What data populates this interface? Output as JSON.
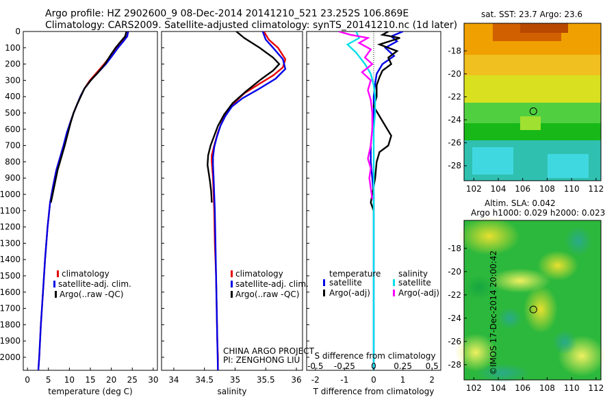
{
  "header": {
    "line1": "Argo profile: HZ 2902600_9 08-Dec-2014 20141210_521 23.252S 106.869E",
    "line2": "Climatology: CARS2009. Satellite-adjusted climatology: synTS_20141210.nc (1d later)"
  },
  "credit": "©IMOS 17-Dec-2014 20:00:42",
  "project": {
    "line1": "CHINA ARGO PROJECT",
    "line2": "PI: ZENGHONG LIU"
  },
  "colors": {
    "climatology": "#e60000",
    "satellite": "#0000e6",
    "argo": "#000000",
    "sat_sal": "#00e0e8",
    "argo_sal": "#ff00ff"
  },
  "chart_data": [
    {
      "type": "line",
      "xlabel": "temperature (deg C)",
      "ylabel": "",
      "xlim": [
        -1,
        31
      ],
      "ylim": [
        2080,
        0
      ],
      "xticks": [
        0,
        5,
        10,
        15,
        20,
        25,
        30
      ],
      "yticks": [
        0,
        100,
        200,
        300,
        400,
        500,
        600,
        700,
        800,
        900,
        1000,
        1100,
        1200,
        1300,
        1400,
        1500,
        1600,
        1700,
        1800,
        1900,
        2000
      ],
      "legend": [
        "climatology",
        "satellite-adj. clim.",
        "Argo(..raw -QC)"
      ],
      "legend_position": "bottom-right",
      "series": [
        {
          "name": "climatology",
          "color": "#e60000",
          "points": [
            [
              24.1,
              0
            ],
            [
              23.7,
              30
            ],
            [
              22.5,
              60
            ],
            [
              21.1,
              100
            ],
            [
              19.8,
              150
            ],
            [
              18.3,
              200
            ],
            [
              16.6,
              250
            ],
            [
              14.9,
              300
            ],
            [
              13.6,
              350
            ],
            [
              12.6,
              400
            ],
            [
              11.8,
              450
            ],
            [
              11.0,
              500
            ],
            [
              10.2,
              560
            ],
            [
              9.5,
              620
            ],
            [
              8.6,
              700
            ],
            [
              7.7,
              780
            ],
            [
              6.9,
              850
            ],
            [
              6.1,
              950
            ],
            [
              5.4,
              1050
            ],
            [
              4.8,
              1200
            ],
            [
              4.2,
              1400
            ],
            [
              3.7,
              1600
            ],
            [
              3.2,
              1800
            ],
            [
              2.8,
              2000
            ],
            [
              2.6,
              2080
            ]
          ]
        },
        {
          "name": "satellite-adj. clim.",
          "color": "#0000e6",
          "points": [
            [
              24.0,
              0
            ],
            [
              23.8,
              30
            ],
            [
              22.9,
              60
            ],
            [
              21.6,
              100
            ],
            [
              20.2,
              150
            ],
            [
              18.7,
              200
            ],
            [
              16.9,
              250
            ],
            [
              15.1,
              300
            ],
            [
              13.6,
              350
            ],
            [
              12.6,
              400
            ],
            [
              11.8,
              450
            ],
            [
              11.0,
              500
            ],
            [
              10.2,
              560
            ],
            [
              9.4,
              620
            ],
            [
              8.6,
              700
            ],
            [
              7.7,
              780
            ],
            [
              6.9,
              850
            ],
            [
              6.1,
              950
            ],
            [
              5.4,
              1050
            ],
            [
              4.8,
              1200
            ],
            [
              4.2,
              1400
            ],
            [
              3.7,
              1600
            ],
            [
              3.2,
              1800
            ],
            [
              2.8,
              2000
            ],
            [
              2.6,
              2080
            ]
          ]
        },
        {
          "name": "Argo(..raw -QC)",
          "color": "#000000",
          "points": [
            [
              23.6,
              0
            ],
            [
              23.3,
              30
            ],
            [
              22.3,
              60
            ],
            [
              21.0,
              100
            ],
            [
              19.7,
              150
            ],
            [
              18.5,
              200
            ],
            [
              16.9,
              250
            ],
            [
              15.1,
              300
            ],
            [
              13.6,
              350
            ],
            [
              12.7,
              400
            ],
            [
              11.8,
              450
            ],
            [
              11.0,
              500
            ],
            [
              10.3,
              560
            ],
            [
              9.7,
              620
            ],
            [
              8.9,
              700
            ],
            [
              8.0,
              780
            ],
            [
              7.2,
              850
            ],
            [
              6.4,
              950
            ],
            [
              5.6,
              1050
            ]
          ]
        }
      ]
    },
    {
      "type": "line",
      "xlabel": "salinity",
      "ylabel": "",
      "xlim": [
        33.8,
        36.1
      ],
      "ylim": [
        2080,
        0
      ],
      "xticks": [
        34,
        34.5,
        35,
        35.5,
        36
      ],
      "legend": [
        "climatology",
        "satellite-adj. clim.",
        "Argo(..raw -QC)"
      ],
      "legend_position": "bottom-right",
      "series": [
        {
          "name": "climatology",
          "color": "#e60000",
          "points": [
            [
              35.47,
              0
            ],
            [
              35.55,
              50
            ],
            [
              35.7,
              100
            ],
            [
              35.82,
              170
            ],
            [
              35.78,
              220
            ],
            [
              35.62,
              270
            ],
            [
              35.4,
              320
            ],
            [
              35.15,
              380
            ],
            [
              34.98,
              440
            ],
            [
              34.86,
              500
            ],
            [
              34.78,
              560
            ],
            [
              34.72,
              620
            ],
            [
              34.66,
              700
            ],
            [
              34.62,
              760
            ],
            [
              34.62,
              800
            ],
            [
              34.63,
              850
            ],
            [
              34.64,
              900
            ],
            [
              34.65,
              1000
            ],
            [
              34.66,
              1100
            ],
            [
              34.67,
              1300
            ],
            [
              34.69,
              1500
            ],
            [
              34.7,
              1700
            ],
            [
              34.71,
              1900
            ],
            [
              34.72,
              2000
            ],
            [
              34.72,
              2080
            ]
          ]
        },
        {
          "name": "satellite-adj. clim.",
          "color": "#0000e6",
          "points": [
            [
              35.45,
              0
            ],
            [
              35.5,
              50
            ],
            [
              35.62,
              100
            ],
            [
              35.78,
              170
            ],
            [
              35.82,
              230
            ],
            [
              35.66,
              290
            ],
            [
              35.4,
              350
            ],
            [
              35.12,
              410
            ],
            [
              34.95,
              460
            ],
            [
              34.84,
              520
            ],
            [
              34.76,
              580
            ],
            [
              34.7,
              650
            ],
            [
              34.66,
              710
            ],
            [
              34.64,
              770
            ],
            [
              34.64,
              820
            ],
            [
              34.65,
              900
            ],
            [
              34.66,
              1000
            ],
            [
              34.67,
              1100
            ],
            [
              34.68,
              1300
            ],
            [
              34.69,
              1500
            ],
            [
              34.7,
              1700
            ],
            [
              34.71,
              1900
            ],
            [
              34.72,
              2080
            ]
          ]
        },
        {
          "name": "Argo(..raw -QC)",
          "color": "#000000",
          "points": [
            [
              35.02,
              0
            ],
            [
              35.15,
              40
            ],
            [
              35.4,
              100
            ],
            [
              35.62,
              160
            ],
            [
              35.72,
              200
            ],
            [
              35.62,
              240
            ],
            [
              35.4,
              300
            ],
            [
              35.17,
              370
            ],
            [
              34.96,
              440
            ],
            [
              34.82,
              510
            ],
            [
              34.72,
              580
            ],
            [
              34.66,
              640
            ],
            [
              34.6,
              700
            ],
            [
              34.56,
              760
            ],
            [
              34.55,
              820
            ],
            [
              34.57,
              870
            ],
            [
              34.59,
              920
            ],
            [
              34.61,
              980
            ],
            [
              34.62,
              1050
            ]
          ]
        }
      ]
    },
    {
      "type": "line",
      "xlabel": "T difference from climatology",
      "x2label": "S difference from climatology",
      "xlim": [
        -2.3,
        2.3
      ],
      "ylim": [
        2080,
        0
      ],
      "xticks": [
        -2,
        -1,
        0,
        1,
        2
      ],
      "x2ticks": [
        -0.5,
        -0.25,
        0,
        0.25,
        0.5
      ],
      "legend_temperature_title": "temperature",
      "legend_salinity_title": "salinity",
      "legend": [
        "satellite",
        "Argo(-adj)",
        "satellite",
        "Argo(-adj)"
      ],
      "legend_position": "bottom",
      "series": [
        {
          "name": "satellite",
          "group": "temperature",
          "color": "#0000e6",
          "points": [
            [
              1.0,
              0
            ],
            [
              0.6,
              30
            ],
            [
              0.8,
              60
            ],
            [
              0.4,
              100
            ],
            [
              0.7,
              150
            ],
            [
              0.3,
              200
            ],
            [
              0.1,
              260
            ],
            [
              0.05,
              320
            ],
            [
              0.0,
              400
            ],
            [
              0.0,
              500
            ],
            [
              -0.05,
              600
            ],
            [
              -0.1,
              700
            ],
            [
              -0.1,
              800
            ],
            [
              -0.05,
              900
            ],
            [
              0.0,
              1000
            ],
            [
              0.0,
              1200
            ],
            [
              0.0,
              1500
            ],
            [
              0.0,
              1800
            ],
            [
              0.0,
              2080
            ]
          ]
        },
        {
          "name": "Argo(-adj)",
          "group": "temperature",
          "color": "#000000",
          "points": [
            [
              0.5,
              0
            ],
            [
              0.3,
              20
            ],
            [
              0.9,
              40
            ],
            [
              0.2,
              80
            ],
            [
              0.8,
              120
            ],
            [
              0.5,
              160
            ],
            [
              0.6,
              200
            ],
            [
              0.3,
              240
            ],
            [
              0.2,
              280
            ],
            [
              0.1,
              330
            ],
            [
              0.1,
              400
            ],
            [
              0.0,
              460
            ],
            [
              0.2,
              520
            ],
            [
              0.4,
              580
            ],
            [
              0.6,
              640
            ],
            [
              0.5,
              700
            ],
            [
              0.2,
              740
            ],
            [
              0.1,
              800
            ],
            [
              0.05,
              900
            ],
            [
              -0.05,
              1000
            ],
            [
              -0.1,
              1050
            ],
            [
              0.0,
              1100
            ]
          ]
        },
        {
          "name": "satellite",
          "group": "salinity",
          "color": "#00e0e8",
          "points": [
            [
              -0.6,
              0
            ],
            [
              -0.5,
              40
            ],
            [
              -0.9,
              80
            ],
            [
              -0.6,
              130
            ],
            [
              -0.3,
              200
            ],
            [
              -0.1,
              260
            ],
            [
              0.0,
              330
            ],
            [
              0.05,
              400
            ],
            [
              0.05,
              500
            ],
            [
              0.0,
              600
            ],
            [
              0.0,
              700
            ],
            [
              0.0,
              800
            ],
            [
              0.0,
              900
            ],
            [
              0.0,
              1000
            ],
            [
              0.0,
              1200
            ],
            [
              0.0,
              1500
            ],
            [
              0.0,
              1800
            ],
            [
              0.0,
              2080
            ]
          ]
        },
        {
          "name": "Argo(-adj)",
          "group": "salinity",
          "color": "#ff00ff",
          "points": [
            [
              -1.2,
              0
            ],
            [
              -0.8,
              20
            ],
            [
              -0.2,
              40
            ],
            [
              -0.5,
              70
            ],
            [
              -0.1,
              110
            ],
            [
              -0.3,
              160
            ],
            [
              -0.05,
              200
            ],
            [
              -0.4,
              250
            ],
            [
              -0.1,
              300
            ],
            [
              -0.2,
              360
            ],
            [
              -0.1,
              420
            ],
            [
              -0.05,
              500
            ],
            [
              -0.05,
              600
            ],
            [
              -0.1,
              700
            ],
            [
              -0.2,
              780
            ],
            [
              -0.1,
              840
            ],
            [
              -0.15,
              900
            ],
            [
              -0.1,
              960
            ],
            [
              -0.05,
              1030
            ]
          ]
        }
      ]
    },
    {
      "type": "heatmap",
      "title": "sat. SST: 23.7 Argo: 23.6",
      "xlim": [
        101.2,
        112.4
      ],
      "ylim": [
        -29.3,
        -15.6
      ],
      "xticks": [
        102,
        104,
        106,
        108,
        110,
        112
      ],
      "yticks": [
        -18,
        -20,
        -22,
        -24,
        -26,
        -28
      ],
      "marker": {
        "lon": 106.869,
        "lat": -23.252
      }
    },
    {
      "type": "heatmap",
      "title": "Altim. SLA: 0.042",
      "subtitle": "Argo h1000: 0.029 h2000: 0.023",
      "xlim": [
        101.2,
        112.4
      ],
      "ylim": [
        -29.3,
        -15.6
      ],
      "xticks": [
        102,
        104,
        106,
        108,
        110,
        112
      ],
      "yticks": [
        -18,
        -20,
        -22,
        -24,
        -26,
        -28
      ],
      "marker": {
        "lon": 106.869,
        "lat": -23.252
      }
    }
  ]
}
